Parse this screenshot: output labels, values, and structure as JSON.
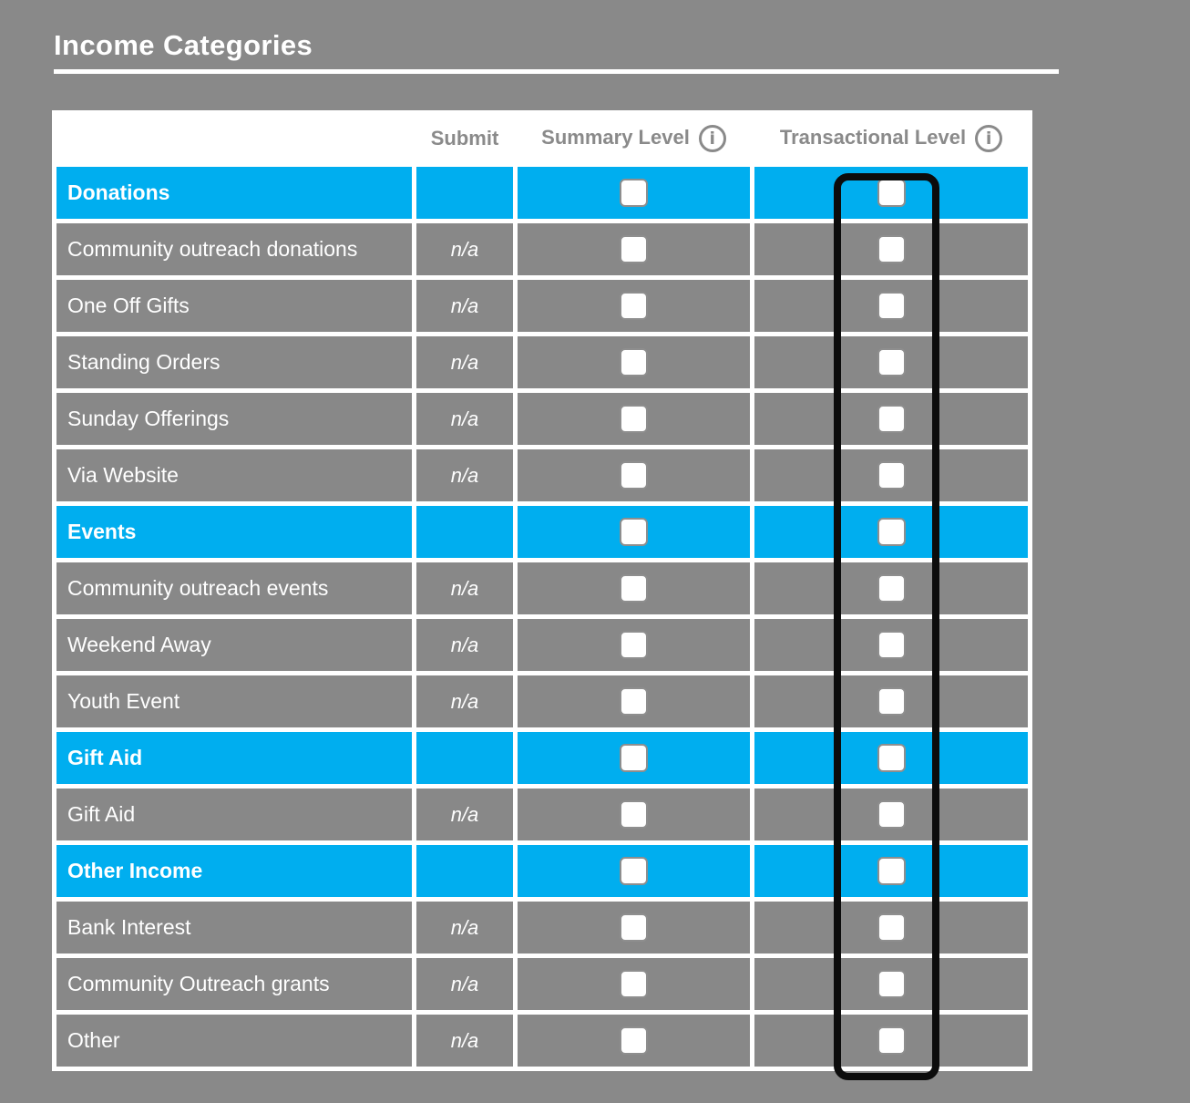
{
  "title": "Income Categories",
  "table": {
    "headers": {
      "category": "",
      "submit": "Submit",
      "summary": "Summary Level",
      "transactional": "Transactional Level"
    },
    "info_icon_glyph": "i",
    "rows": [
      {
        "label": "Donations",
        "type": "group",
        "submit": "",
        "summary_checked": false,
        "transactional_checked": false
      },
      {
        "label": "Community outreach donations",
        "type": "item",
        "submit": "n/a",
        "summary_checked": false,
        "transactional_checked": false
      },
      {
        "label": "One Off Gifts",
        "type": "item",
        "submit": "n/a",
        "summary_checked": false,
        "transactional_checked": false
      },
      {
        "label": "Standing Orders",
        "type": "item",
        "submit": "n/a",
        "summary_checked": false,
        "transactional_checked": false
      },
      {
        "label": "Sunday Offerings",
        "type": "item",
        "submit": "n/a",
        "summary_checked": false,
        "transactional_checked": false
      },
      {
        "label": "Via Website",
        "type": "item",
        "submit": "n/a",
        "summary_checked": false,
        "transactional_checked": false
      },
      {
        "label": "Events",
        "type": "group",
        "submit": "",
        "summary_checked": false,
        "transactional_checked": false
      },
      {
        "label": "Community outreach events",
        "type": "item",
        "submit": "n/a",
        "summary_checked": false,
        "transactional_checked": false
      },
      {
        "label": "Weekend Away",
        "type": "item",
        "submit": "n/a",
        "summary_checked": false,
        "transactional_checked": false
      },
      {
        "label": "Youth Event",
        "type": "item",
        "submit": "n/a",
        "summary_checked": false,
        "transactional_checked": false
      },
      {
        "label": "Gift Aid",
        "type": "group",
        "submit": "",
        "summary_checked": false,
        "transactional_checked": false
      },
      {
        "label": "Gift Aid",
        "type": "item",
        "submit": "n/a",
        "summary_checked": false,
        "transactional_checked": false
      },
      {
        "label": "Other Income",
        "type": "group",
        "submit": "",
        "summary_checked": false,
        "transactional_checked": false
      },
      {
        "label": "Bank Interest",
        "type": "item",
        "submit": "n/a",
        "summary_checked": false,
        "transactional_checked": false
      },
      {
        "label": "Community Outreach grants",
        "type": "item",
        "submit": "n/a",
        "summary_checked": false,
        "transactional_checked": false
      },
      {
        "label": "Other",
        "type": "item",
        "submit": "n/a",
        "summary_checked": false,
        "transactional_checked": false
      }
    ]
  },
  "annotation": {
    "type": "rectangle-outline",
    "highlights": "transactional-level-checkbox-column",
    "color": "#0c0c0c"
  },
  "colors": {
    "page_background": "#898989",
    "row_gray": "#888888",
    "group_blue": "#00aeef",
    "table_background": "#ffffff",
    "header_text": "#8a8a8a",
    "row_text": "#ffffff"
  }
}
